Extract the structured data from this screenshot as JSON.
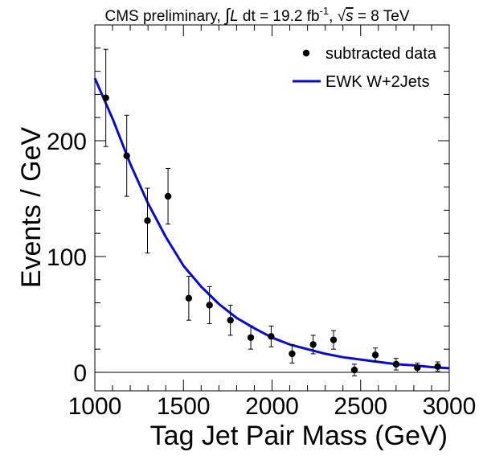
{
  "chart_data": {
    "type": "scatter",
    "title": {
      "prefix": "CMS preliminary, ",
      "integral": "∫",
      "L": "L",
      "dt": " dt = 19.2 fb",
      "sup": "-1",
      "sep": ", ",
      "sqrt": "√",
      "s": "s",
      "energy": " = 8 TeV"
    },
    "xlabel": "Tag Jet Pair Mass (GeV)",
    "ylabel": "Events / GeV",
    "xlim": [
      1000,
      3000
    ],
    "ylim": [
      -16,
      300
    ],
    "x_ticks": [
      1000,
      1500,
      2000,
      2500,
      3000
    ],
    "y_ticks": [
      0,
      100,
      200
    ],
    "zero_line": 0,
    "grid": false,
    "legend_position": "top-right",
    "series": [
      {
        "name": "subtracted data",
        "kind": "points",
        "color": "#000000",
        "x": [
          1062,
          1180,
          1297,
          1413,
          1530,
          1647,
          1765,
          1880,
          1995,
          2113,
          2232,
          2347,
          2465,
          2583,
          2700,
          2820,
          2935
        ],
        "y": [
          237,
          187,
          131,
          152,
          64,
          58,
          45,
          30,
          31,
          16,
          24,
          28,
          2,
          15,
          7,
          4,
          5
        ],
        "yerr": [
          42,
          35,
          28,
          24,
          19,
          16,
          13,
          10,
          9,
          8,
          8,
          8,
          5,
          6,
          5,
          4,
          4
        ]
      },
      {
        "name": "EWK W+2Jets",
        "kind": "curve",
        "color": "#0a0acc",
        "x": [
          1000,
          1100,
          1200,
          1300,
          1400,
          1500,
          1600,
          1700,
          1800,
          1900,
          2000,
          2100,
          2200,
          2300,
          2400,
          2500,
          2600,
          2700,
          2800,
          2900,
          3000
        ],
        "y": [
          254,
          219,
          180,
          146,
          117,
          92,
          74,
          59,
          47,
          38,
          30,
          24,
          20,
          16,
          13,
          11,
          9,
          7,
          6,
          4.5,
          3.5
        ]
      }
    ]
  }
}
